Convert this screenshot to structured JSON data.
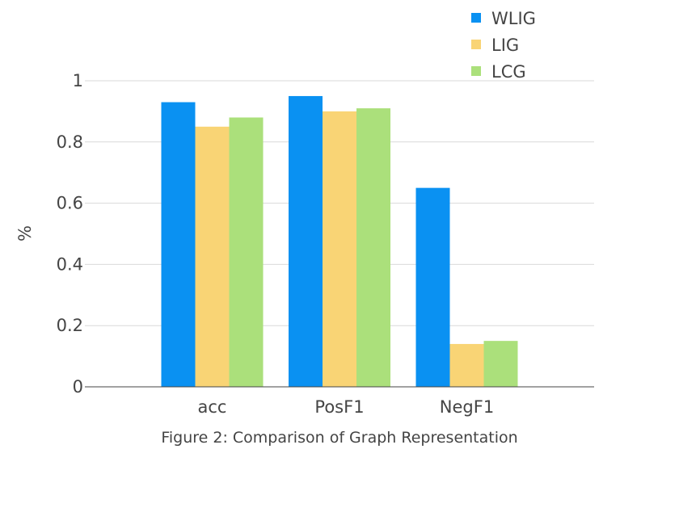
{
  "chart_data": {
    "type": "bar",
    "categories": [
      "acc",
      "PosF1",
      "NegF1"
    ],
    "series": [
      {
        "name": "WLIG",
        "values": [
          0.93,
          0.95,
          0.65
        ],
        "color": "#0a91f2"
      },
      {
        "name": "LIG",
        "values": [
          0.85,
          0.9,
          0.14
        ],
        "color": "#f9d475"
      },
      {
        "name": "LCG",
        "values": [
          0.88,
          0.91,
          0.15
        ],
        "color": "#abe07b"
      }
    ],
    "ylabel": "%",
    "ylim": [
      0,
      1
    ],
    "yticks": [
      0,
      0.2,
      0.4,
      0.6,
      0.8,
      1
    ],
    "ytick_labels": [
      "0",
      "0.2",
      "0.4",
      "0.6",
      "0.8",
      "1"
    ],
    "caption": "Figure 2: Comparison of Graph Representation",
    "grid": true,
    "legend_position": "top-right"
  }
}
